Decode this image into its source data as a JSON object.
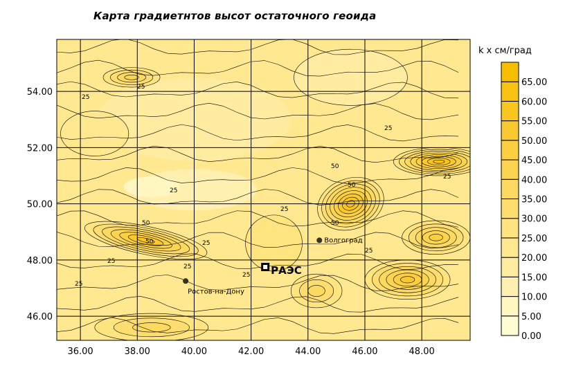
{
  "title": "Карта градиетнтов высот остаточного геоида",
  "colorbar": {
    "unit_label": "k x  см/град",
    "ticks": [
      "0.00",
      "5.00",
      "10.00",
      "15.00",
      "20.00",
      "25.00",
      "30.00",
      "35.00",
      "40.00",
      "45.00",
      "50.00",
      "55.00",
      "60.00",
      "65.00"
    ],
    "colors": [
      "#fffbd2",
      "#fff6c0",
      "#fff0b0",
      "#ffeca0",
      "#ffe890",
      "#ffe480",
      "#fddd70",
      "#fcd960",
      "#fbd450",
      "#fbcf40",
      "#fac930",
      "#f9c620",
      "#f8c210",
      "#f7be00"
    ]
  },
  "axes": {
    "x_ticks": [
      "36.00",
      "38.00",
      "40.00",
      "42.00",
      "44.00",
      "46.00",
      "48.00"
    ],
    "y_ticks": [
      "46.00",
      "48.00",
      "50.00",
      "52.00",
      "54.00"
    ],
    "xlim": [
      35.17,
      49.7
    ],
    "ylim": [
      45.14,
      55.85
    ],
    "grid": true
  },
  "contour_labels": [
    "25",
    "25",
    "25",
    "25",
    "25",
    "25",
    "50",
    "50",
    "50",
    "50",
    "50",
    "25",
    "25",
    "25",
    "25",
    "25",
    "25"
  ],
  "places": [
    {
      "name": "Волгоград",
      "lon": 44.4,
      "lat": 48.7,
      "marker": "dot"
    },
    {
      "name": "Ростов-на-Дону",
      "lon": 39.7,
      "lat": 47.25,
      "marker": "dot"
    },
    {
      "name": "РАЭС",
      "lon": 42.5,
      "lat": 47.75,
      "marker": "square"
    }
  ],
  "field": [
    {
      "lon": 38.3,
      "lat": 48.7,
      "rx": 2.2,
      "ry": 0.5,
      "value": 55
    },
    {
      "lon": 45.5,
      "lat": 50.0,
      "rx": 1.2,
      "ry": 0.9,
      "value": 60
    },
    {
      "lon": 48.6,
      "lat": 51.5,
      "rx": 1.6,
      "ry": 0.5,
      "value": 60
    },
    {
      "lon": 47.5,
      "lat": 47.3,
      "rx": 1.5,
      "ry": 0.7,
      "value": 50
    },
    {
      "lon": 48.5,
      "lat": 48.8,
      "rx": 1.2,
      "ry": 0.6,
      "value": 45
    },
    {
      "lon": 37.8,
      "lat": 54.5,
      "rx": 1.0,
      "ry": 0.35,
      "value": 40
    },
    {
      "lon": 38.5,
      "lat": 45.6,
      "rx": 2.0,
      "ry": 0.5,
      "value": 35
    },
    {
      "lon": 44.3,
      "lat": 46.9,
      "rx": 0.9,
      "ry": 0.6,
      "value": 35
    },
    {
      "lon": 42.8,
      "lat": 48.6,
      "rx": 1.0,
      "ry": 1.0,
      "value": 25
    },
    {
      "lon": 36.5,
      "lat": 52.5,
      "rx": 1.2,
      "ry": 0.8,
      "value": 20
    },
    {
      "lon": 45.5,
      "lat": 54.5,
      "rx": 2.0,
      "ry": 1.0,
      "value": 15
    }
  ]
}
